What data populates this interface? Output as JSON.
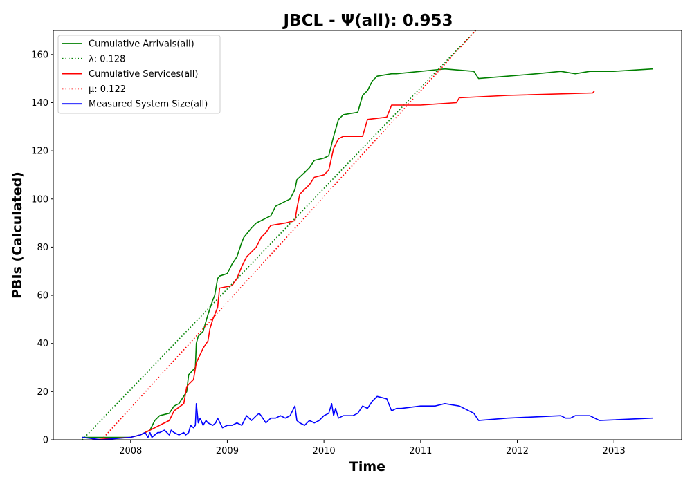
{
  "chart_data": {
    "type": "line",
    "title": "JBCL -  Ψ(all): 0.953",
    "xlabel": "Time",
    "ylabel": "PBIs (Calculated)",
    "xlim": [
      2007.2,
      2013.7
    ],
    "ylim": [
      0,
      170
    ],
    "x_ticks": [
      2008,
      2009,
      2010,
      2011,
      2012,
      2013
    ],
    "y_ticks": [
      0,
      20,
      40,
      60,
      80,
      100,
      120,
      140,
      160
    ],
    "grid": false,
    "legend_position": "top-left",
    "series": [
      {
        "name": "Cumulative Arrivals(all)",
        "style": "solid",
        "color": "#008000",
        "x": [
          2007.5,
          2007.7,
          2008.0,
          2008.1,
          2008.2,
          2008.25,
          2008.3,
          2008.4,
          2008.45,
          2008.5,
          2008.58,
          2008.6,
          2008.67,
          2008.68,
          2008.7,
          2008.75,
          2008.8,
          2008.85,
          2008.87,
          2008.9,
          2008.92,
          2009.0,
          2009.05,
          2009.1,
          2009.15,
          2009.17,
          2009.25,
          2009.3,
          2009.35,
          2009.45,
          2009.5,
          2009.6,
          2009.65,
          2009.7,
          2009.72,
          2009.8,
          2009.85,
          2009.9,
          2010.0,
          2010.05,
          2010.1,
          2010.15,
          2010.2,
          2010.35,
          2010.4,
          2010.45,
          2010.5,
          2010.55,
          2010.7,
          2010.75,
          2011.0,
          2011.25,
          2011.55,
          2011.6,
          2011.9,
          2012.2,
          2012.45,
          2012.6,
          2012.75,
          2013.0,
          2013.4
        ],
        "y": [
          1,
          1,
          1,
          2,
          4,
          8,
          10,
          11,
          14,
          15,
          20,
          27,
          30,
          40,
          43,
          45,
          52,
          58,
          60,
          67,
          68,
          69,
          73,
          76,
          82,
          84,
          88,
          90,
          91,
          93,
          97,
          99,
          100,
          104,
          108,
          111,
          113,
          116,
          117,
          118,
          126,
          133,
          135,
          136,
          143,
          145,
          149,
          151,
          152,
          152,
          153,
          154,
          153,
          150,
          151,
          152,
          153,
          152,
          153,
          153,
          154
        ]
      },
      {
        "name": "λ: 0.128",
        "style": "dotted",
        "color": "#008000",
        "x": [
          2007.5,
          2011.57
        ],
        "y": [
          0,
          170
        ]
      },
      {
        "name": "Cumulative Services(all)",
        "style": "solid",
        "color": "#ff0000",
        "x": [
          2007.6,
          2008.0,
          2008.1,
          2008.2,
          2008.4,
          2008.45,
          2008.55,
          2008.58,
          2008.6,
          2008.65,
          2008.68,
          2008.75,
          2008.8,
          2008.82,
          2008.85,
          2008.9,
          2008.92,
          2009.05,
          2009.1,
          2009.15,
          2009.2,
          2009.25,
          2009.3,
          2009.35,
          2009.4,
          2009.45,
          2009.6,
          2009.7,
          2009.72,
          2009.75,
          2009.8,
          2009.85,
          2009.9,
          2010.0,
          2010.05,
          2010.1,
          2010.15,
          2010.2,
          2010.4,
          2010.45,
          2010.65,
          2010.7,
          2011.0,
          2011.37,
          2011.4,
          2011.9,
          2012.78,
          2012.8
        ],
        "y": [
          0,
          1,
          2,
          4,
          8,
          12,
          15,
          22,
          23,
          25,
          32,
          38,
          41,
          46,
          50,
          55,
          63,
          64,
          67,
          72,
          76,
          78,
          80,
          84,
          86,
          89,
          90,
          91,
          96,
          102,
          104,
          106,
          109,
          110,
          112,
          121,
          125,
          126,
          126,
          133,
          134,
          139,
          139,
          140,
          142,
          143,
          144,
          145
        ]
      },
      {
        "name": "μ: 0.122",
        "style": "dotted",
        "color": "#ff0000",
        "x": [
          2007.7,
          2011.57
        ],
        "y": [
          0,
          170
        ]
      },
      {
        "name": "Measured System Size(all)",
        "style": "solid",
        "color": "#0000ff",
        "x": [
          2007.5,
          2007.7,
          2008.0,
          2008.1,
          2008.15,
          2008.18,
          2008.2,
          2008.22,
          2008.25,
          2008.28,
          2008.3,
          2008.35,
          2008.4,
          2008.42,
          2008.45,
          2008.5,
          2008.55,
          2008.57,
          2008.6,
          2008.62,
          2008.65,
          2008.67,
          2008.68,
          2008.7,
          2008.72,
          2008.75,
          2008.78,
          2008.8,
          2008.85,
          2008.88,
          2008.9,
          2008.95,
          2009.0,
          2009.05,
          2009.1,
          2009.15,
          2009.2,
          2009.25,
          2009.3,
          2009.33,
          2009.35,
          2009.4,
          2009.45,
          2009.5,
          2009.55,
          2009.6,
          2009.65,
          2009.7,
          2009.72,
          2009.75,
          2009.8,
          2009.85,
          2009.9,
          2009.95,
          2010.0,
          2010.05,
          2010.08,
          2010.1,
          2010.12,
          2010.15,
          2010.2,
          2010.3,
          2010.35,
          2010.4,
          2010.45,
          2010.5,
          2010.55,
          2010.65,
          2010.7,
          2010.75,
          2010.8,
          2011.0,
          2011.15,
          2011.25,
          2011.4,
          2011.55,
          2011.6,
          2011.9,
          2012.45,
          2012.5,
          2012.55,
          2012.6,
          2012.75,
          2012.85,
          2013.4
        ],
        "y": [
          1,
          0,
          1,
          2,
          3,
          1,
          3,
          1,
          2,
          3,
          3,
          4,
          2,
          4,
          3,
          2,
          3,
          2,
          3,
          6,
          5,
          6,
          15,
          7,
          9,
          6,
          8,
          7,
          6,
          7,
          9,
          5,
          6,
          6,
          7,
          6,
          10,
          8,
          10,
          11,
          10,
          7,
          9,
          9,
          10,
          9,
          10,
          14,
          8,
          7,
          6,
          8,
          7,
          8,
          10,
          11,
          15,
          10,
          13,
          9,
          10,
          10,
          11,
          14,
          13,
          16,
          18,
          17,
          12,
          13,
          13,
          14,
          14,
          15,
          14,
          11,
          8,
          9,
          10,
          9,
          9,
          10,
          10,
          8,
          9
        ]
      }
    ]
  }
}
